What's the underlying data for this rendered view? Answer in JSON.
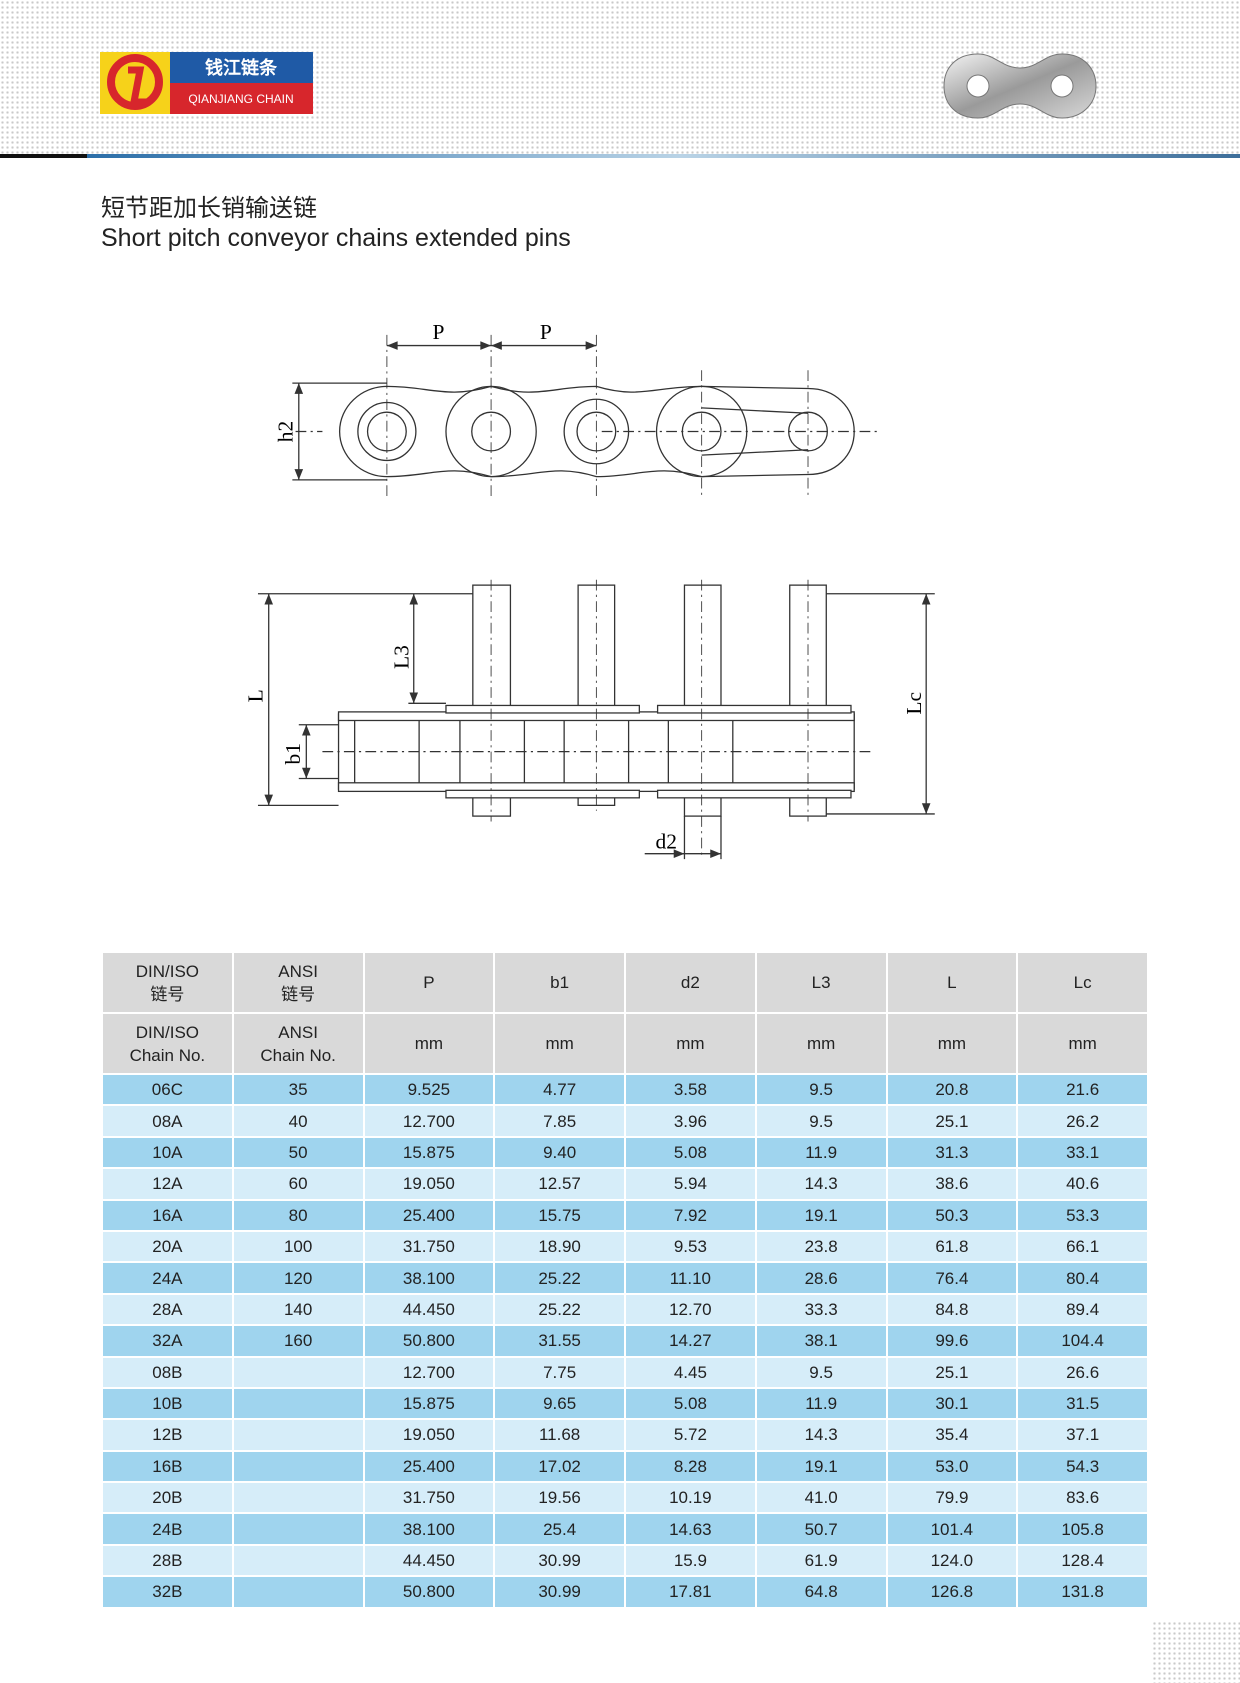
{
  "header": {
    "brand_cn": "钱江链条",
    "brand_en": "QIANJIANG CHAIN"
  },
  "title": {
    "cn": "短节距加长销输送链",
    "en": "Short pitch conveyor chains extended pins"
  },
  "diagram": {
    "top_labels": [
      "P",
      "P",
      "h2"
    ],
    "side_labels": [
      "L",
      "L3",
      "b1",
      "Lc",
      "d2"
    ]
  },
  "table": {
    "header_cn": [
      [
        "DIN/ISO",
        "链号"
      ],
      [
        "ANSI",
        "链号"
      ],
      [
        "P"
      ],
      [
        "b1"
      ],
      [
        "d2"
      ],
      [
        "L3"
      ],
      [
        "L"
      ],
      [
        "Lc"
      ]
    ],
    "header_en": [
      [
        "DIN/ISO",
        "Chain No."
      ],
      [
        "ANSI",
        "Chain No."
      ],
      [
        "mm"
      ],
      [
        "mm"
      ],
      [
        "mm"
      ],
      [
        "mm"
      ],
      [
        "mm"
      ],
      [
        "mm"
      ]
    ],
    "rows": [
      [
        "06C",
        "35",
        "9.525",
        "4.77",
        "3.58",
        "9.5",
        "20.8",
        "21.6"
      ],
      [
        "08A",
        "40",
        "12.700",
        "7.85",
        "3.96",
        "9.5",
        "25.1",
        "26.2"
      ],
      [
        "10A",
        "50",
        "15.875",
        "9.40",
        "5.08",
        "11.9",
        "31.3",
        "33.1"
      ],
      [
        "12A",
        "60",
        "19.050",
        "12.57",
        "5.94",
        "14.3",
        "38.6",
        "40.6"
      ],
      [
        "16A",
        "80",
        "25.400",
        "15.75",
        "7.92",
        "19.1",
        "50.3",
        "53.3"
      ],
      [
        "20A",
        "100",
        "31.750",
        "18.90",
        "9.53",
        "23.8",
        "61.8",
        "66.1"
      ],
      [
        "24A",
        "120",
        "38.100",
        "25.22",
        "11.10",
        "28.6",
        "76.4",
        "80.4"
      ],
      [
        "28A",
        "140",
        "44.450",
        "25.22",
        "12.70",
        "33.3",
        "84.8",
        "89.4"
      ],
      [
        "32A",
        "160",
        "50.800",
        "31.55",
        "14.27",
        "38.1",
        "99.6",
        "104.4"
      ],
      [
        "08B",
        null,
        "12.700",
        "7.75",
        "4.45",
        "9.5",
        "25.1",
        "26.6"
      ],
      [
        "10B",
        null,
        "15.875",
        "9.65",
        "5.08",
        "11.9",
        "30.1",
        "31.5"
      ],
      [
        "12B",
        null,
        "19.050",
        "11.68",
        "5.72",
        "14.3",
        "35.4",
        "37.1"
      ],
      [
        "16B",
        null,
        "25.400",
        "17.02",
        "8.28",
        "19.1",
        "53.0",
        "54.3"
      ],
      [
        "20B",
        null,
        "31.750",
        "19.56",
        "10.19",
        "41.0",
        "79.9",
        "83.6"
      ],
      [
        "24B",
        null,
        "38.100",
        "25.4",
        "14.63",
        "50.7",
        "101.4",
        "105.8"
      ],
      [
        "28B",
        null,
        "44.450",
        "30.99",
        "15.9",
        "61.9",
        "124.0",
        "128.4"
      ],
      [
        "32B",
        null,
        "50.800",
        "30.99",
        "17.81",
        "64.8",
        "126.8",
        "131.8"
      ]
    ]
  }
}
